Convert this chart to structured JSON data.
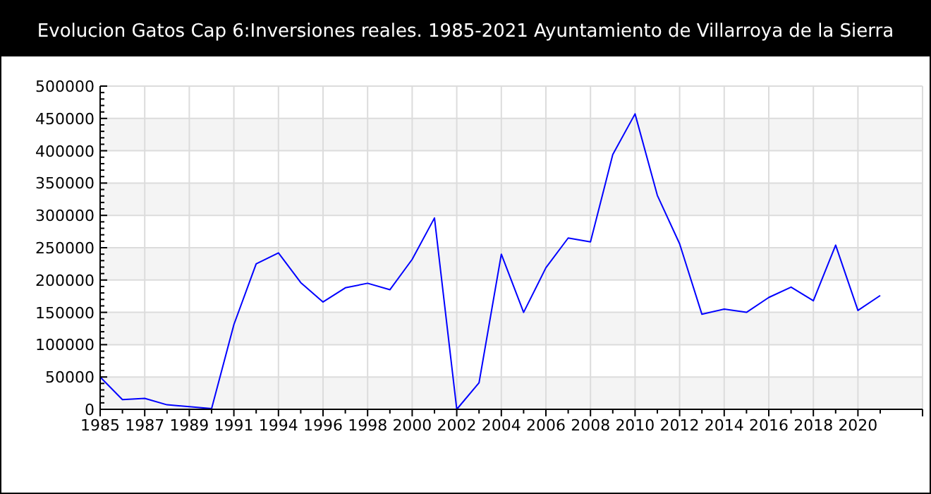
{
  "chart_data": {
    "type": "line",
    "title": "Evolucion Gatos Cap 6:Inversiones reales. 1985-2021 Ayuntamiento de Villarroya de la Sierra",
    "categories": [
      "1985",
      null,
      "1987",
      null,
      "1989",
      null,
      "1991",
      null,
      "1994",
      null,
      "1996",
      null,
      "1998",
      null,
      "2000",
      null,
      "2002",
      null,
      "2004",
      null,
      "2006",
      null,
      "2008",
      null,
      "2010",
      null,
      "2012",
      null,
      "2014",
      null,
      "2016",
      null,
      "2018",
      null,
      "2020",
      null
    ],
    "series": [
      {
        "color": "#0000ff",
        "values": [
          50000,
          15000,
          17000,
          7000,
          4000,
          1000,
          131000,
          225000,
          242000,
          196000,
          166000,
          188000,
          195000,
          185000,
          232000,
          296000,
          0,
          41000,
          240000,
          150000,
          219000,
          265000,
          259000,
          394000,
          457000,
          331000,
          256000,
          147000,
          155000,
          150000,
          173000,
          189000,
          168000,
          254000,
          153000,
          176000
        ]
      }
    ],
    "ylim": [
      0,
      500000
    ],
    "yticks": [
      0,
      50000,
      100000,
      150000,
      200000,
      250000,
      300000,
      350000,
      400000,
      450000,
      500000
    ],
    "bands": [
      {
        "axis": "y",
        "from": 0,
        "to": 50000,
        "color": "#f4f4f4"
      },
      {
        "axis": "y",
        "from": 100000,
        "to": 150000,
        "color": "#f4f4f4"
      },
      {
        "axis": "y",
        "from": 200000,
        "to": 250000,
        "color": "#f4f4f4"
      },
      {
        "axis": "y",
        "from": 300000,
        "to": 350000,
        "color": "#f4f4f4"
      },
      {
        "axis": "y",
        "from": 400000,
        "to": 450000,
        "color": "#f4f4f4"
      }
    ],
    "grid": true,
    "marker": "none",
    "line_style": "solid"
  }
}
